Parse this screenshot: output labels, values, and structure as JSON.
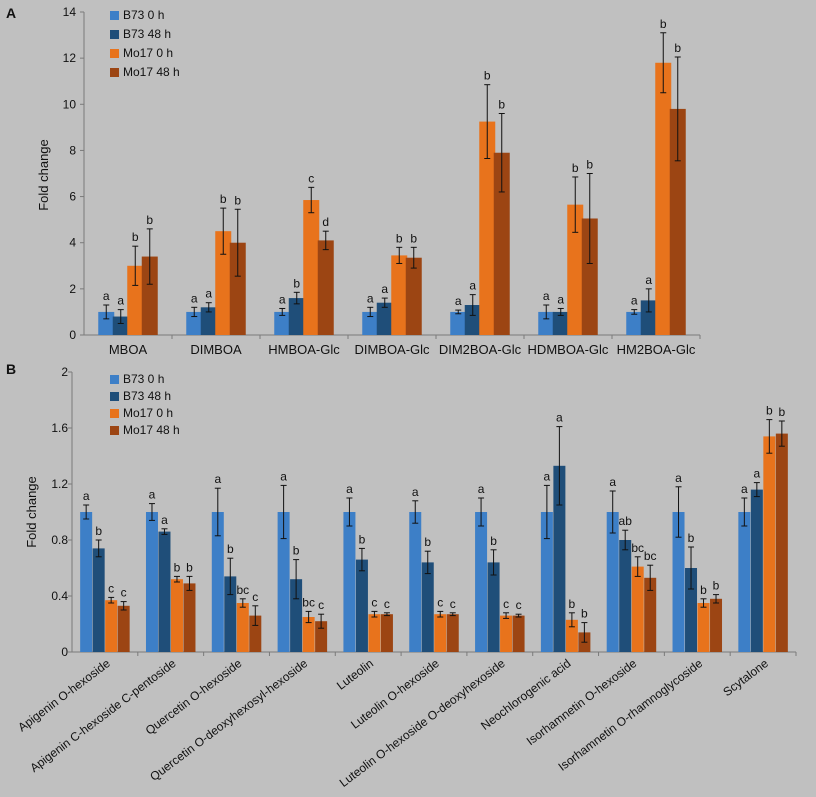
{
  "colors": {
    "background": "#c0c0c0",
    "axis": "#7a7a7a",
    "b73_0h": "#3d7fc7",
    "b73_48h": "#1f4e79",
    "mo17_0h": "#e8731c",
    "mo17_48h": "#9c4513"
  },
  "chart_data": [
    {
      "panel": "A",
      "type": "bar",
      "ylabel": "Fold change",
      "ylim": [
        0,
        14
      ],
      "yticks": [
        "0",
        "2",
        "4",
        "6",
        "8",
        "10",
        "12",
        "14"
      ],
      "legend_position": "top-left",
      "categories": [
        "MBOA",
        "DIMBOA",
        "HMBOA-Glc",
        "DIMBOA-Glc",
        "DIM2BOA-Glc",
        "HDMBOA-Glc",
        "HM2BOA-Glc"
      ],
      "series": [
        {
          "name": "B73 0 h",
          "values": [
            1.0,
            1.0,
            1.0,
            1.0,
            1.0,
            1.0,
            1.0
          ],
          "errors": [
            0.3,
            0.2,
            0.15,
            0.2,
            0.08,
            0.3,
            0.1
          ],
          "letters": [
            "a",
            "a",
            "a",
            "a",
            "a",
            "a",
            "a"
          ]
        },
        {
          "name": "B73 48 h",
          "values": [
            0.8,
            1.2,
            1.6,
            1.4,
            1.3,
            1.0,
            1.5
          ],
          "errors": [
            0.3,
            0.2,
            0.25,
            0.2,
            0.45,
            0.15,
            0.5
          ],
          "letters": [
            "a",
            "a",
            "b",
            "a",
            "a",
            "a",
            "a"
          ]
        },
        {
          "name": "Mo17 0 h",
          "values": [
            3.0,
            4.5,
            5.85,
            3.45,
            9.25,
            5.65,
            11.8
          ],
          "errors": [
            0.85,
            1.0,
            0.55,
            0.35,
            1.6,
            1.2,
            1.3
          ],
          "letters": [
            "b",
            "b",
            "c",
            "b",
            "b",
            "b",
            "b"
          ]
        },
        {
          "name": "Mo17 48 h",
          "values": [
            3.4,
            4.0,
            4.1,
            3.35,
            7.9,
            5.05,
            9.8
          ],
          "errors": [
            1.2,
            1.45,
            0.4,
            0.45,
            1.7,
            1.95,
            2.25
          ],
          "letters": [
            "b",
            "b",
            "d",
            "b",
            "b",
            "b",
            "b"
          ]
        }
      ]
    },
    {
      "panel": "B",
      "type": "bar",
      "ylabel": "Fold change",
      "ylim": [
        0,
        2
      ],
      "yticks": [
        "0",
        "0.4",
        "0.8",
        "1.2",
        "1.6",
        "2"
      ],
      "legend_position": "top-left",
      "categories": [
        "Apigenin O-hexoside",
        "Apigenin C-hexoside C-pentoside",
        "Quercetin O-hexoside",
        "Quercetin O-deoxyhexosyl-hexoside",
        "Luteolin",
        "Luteolin O-hexoside",
        "Luteolin O-hexoside O-deoxyhexoside",
        "Neochlorogenic acid",
        "Isorhamnetin O-hexoside",
        "Isorhamnetin O-rhamnoglycoside",
        "Scytalone"
      ],
      "series": [
        {
          "name": "B73 0 h",
          "values": [
            1.0,
            1.0,
            1.0,
            1.0,
            1.0,
            1.0,
            1.0,
            1.0,
            1.0,
            1.0,
            1.0
          ],
          "errors": [
            0.05,
            0.06,
            0.17,
            0.19,
            0.1,
            0.08,
            0.1,
            0.19,
            0.15,
            0.18,
            0.1
          ],
          "letters": [
            "a",
            "a",
            "a",
            "a",
            "a",
            "a",
            "a",
            "a",
            "a",
            "a",
            "a"
          ]
        },
        {
          "name": "B73 48 h",
          "values": [
            0.74,
            0.86,
            0.54,
            0.52,
            0.66,
            0.64,
            0.64,
            1.33,
            0.8,
            0.6,
            1.16
          ],
          "errors": [
            0.06,
            0.02,
            0.13,
            0.14,
            0.08,
            0.08,
            0.09,
            0.28,
            0.07,
            0.15,
            0.05
          ],
          "letters": [
            "b",
            "a",
            "b",
            "b",
            "b",
            "b",
            "b",
            "a",
            "ab",
            "b",
            "a"
          ]
        },
        {
          "name": "Mo17 0 h",
          "values": [
            0.37,
            0.52,
            0.35,
            0.25,
            0.27,
            0.27,
            0.26,
            0.23,
            0.61,
            0.35,
            1.54
          ],
          "errors": [
            0.02,
            0.02,
            0.03,
            0.04,
            0.02,
            0.02,
            0.02,
            0.05,
            0.07,
            0.03,
            0.12
          ],
          "letters": [
            "c",
            "b",
            "bc",
            "bc",
            "c",
            "c",
            "c",
            "b",
            "bc",
            "b",
            "b"
          ]
        },
        {
          "name": "Mo17 48 h",
          "values": [
            0.33,
            0.49,
            0.26,
            0.22,
            0.27,
            0.27,
            0.26,
            0.14,
            0.53,
            0.38,
            1.56
          ],
          "errors": [
            0.03,
            0.05,
            0.07,
            0.05,
            0.01,
            0.01,
            0.01,
            0.07,
            0.09,
            0.03,
            0.09
          ],
          "letters": [
            "c",
            "b",
            "c",
            "c",
            "c",
            "c",
            "c",
            "b",
            "bc",
            "b",
            "b"
          ]
        }
      ]
    }
  ]
}
